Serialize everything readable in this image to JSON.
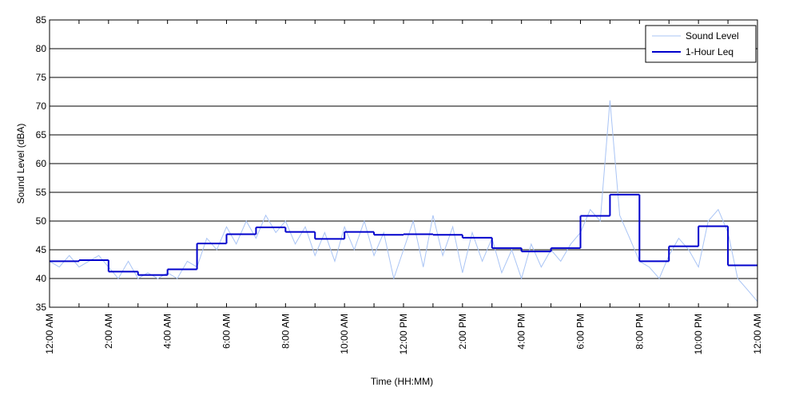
{
  "chart_data": {
    "type": "line",
    "xlabel": "Time (HH:MM)",
    "ylabel": "Sound Level (dBA)",
    "xlim": [
      0,
      24
    ],
    "ylim": [
      35,
      85
    ],
    "yticks": [
      35,
      40,
      45,
      50,
      55,
      60,
      65,
      70,
      75,
      80,
      85
    ],
    "xticks": [
      {
        "value": 0,
        "label": "12:00 AM"
      },
      {
        "value": 2,
        "label": "2:00 AM"
      },
      {
        "value": 4,
        "label": "4:00 AM"
      },
      {
        "value": 6,
        "label": "6:00 AM"
      },
      {
        "value": 8,
        "label": "8:00 AM"
      },
      {
        "value": 10,
        "label": "10:00 AM"
      },
      {
        "value": 12,
        "label": "12:00 PM"
      },
      {
        "value": 14,
        "label": "2:00 PM"
      },
      {
        "value": 16,
        "label": "4:00 PM"
      },
      {
        "value": 18,
        "label": "6:00 PM"
      },
      {
        "value": 20,
        "label": "8:00 PM"
      },
      {
        "value": 22,
        "label": "10:00 PM"
      },
      {
        "value": 24,
        "label": "12:00 AM"
      }
    ],
    "x_minor_ticks": [
      1,
      3,
      5,
      7,
      9,
      11,
      13,
      15,
      17,
      19,
      21,
      23
    ],
    "grid": "y",
    "legend": "upper right",
    "series": [
      {
        "name": "Sound Level",
        "color": "#a9c4f5",
        "style": "line",
        "x": [
          0,
          0.33,
          0.67,
          1,
          1.33,
          1.67,
          2,
          2.33,
          2.67,
          3,
          3.33,
          3.67,
          4,
          4.33,
          4.67,
          5,
          5.33,
          5.67,
          6,
          6.33,
          6.67,
          7,
          7.33,
          7.67,
          8,
          8.33,
          8.67,
          9,
          9.33,
          9.67,
          10,
          10.33,
          10.67,
          11,
          11.33,
          11.67,
          12,
          12.33,
          12.67,
          13,
          13.33,
          13.67,
          14,
          14.33,
          14.67,
          15,
          15.33,
          15.67,
          16,
          16.33,
          16.67,
          17,
          17.33,
          17.67,
          18,
          18.33,
          18.67,
          19,
          19.33,
          19.67,
          20,
          20.33,
          20.67,
          21,
          21.33,
          21.67,
          22,
          22.33,
          22.67,
          23,
          23.33,
          23.67,
          24
        ],
        "values": [
          43,
          42,
          44,
          42,
          43,
          44,
          42,
          40,
          43,
          40,
          41,
          40,
          41,
          40,
          43,
          42,
          47,
          45,
          49,
          46,
          50,
          47,
          51,
          48,
          50,
          46,
          49,
          44,
          48,
          43,
          49,
          45,
          50,
          44,
          48,
          40,
          45,
          50,
          42,
          51,
          44,
          49,
          41,
          48,
          43,
          47,
          41,
          45,
          40,
          46,
          42,
          45,
          43,
          46,
          48,
          52,
          50,
          71,
          51,
          47,
          43,
          42,
          40,
          44,
          47,
          45,
          42,
          50,
          52,
          48,
          40,
          38,
          36
        ]
      },
      {
        "name": "1-Hour Leq",
        "color": "#0000cc",
        "style": "step",
        "x": [
          0,
          1,
          2,
          3,
          4,
          5,
          6,
          7,
          8,
          9,
          10,
          11,
          12,
          13,
          14,
          15,
          16,
          17,
          18,
          19,
          20,
          21,
          22,
          23
        ],
        "values": [
          43.0,
          43.2,
          41.2,
          40.6,
          41.6,
          46.1,
          47.7,
          48.9,
          48.1,
          46.9,
          48.1,
          47.6,
          47.7,
          47.6,
          47.1,
          45.3,
          44.7,
          45.3,
          50.9,
          54.6,
          43.0,
          45.6,
          49.1,
          42.3
        ]
      }
    ]
  }
}
